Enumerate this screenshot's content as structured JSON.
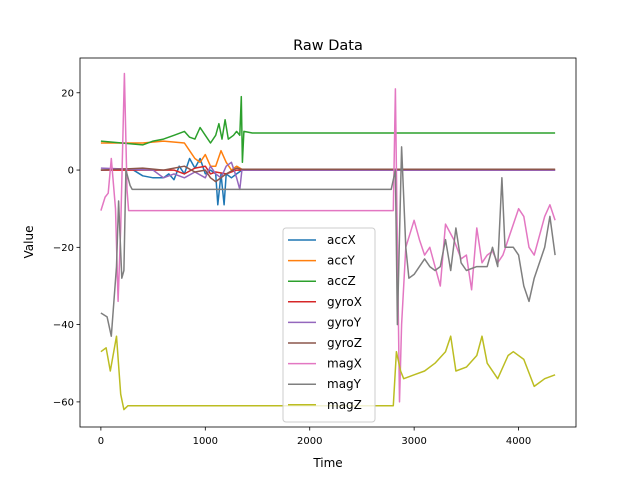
{
  "chart_data": {
    "type": "line",
    "title": "Raw Data",
    "xlabel": "Time",
    "ylabel": "Value",
    "xlim": [
      -200,
      4550
    ],
    "ylim": [
      -66.5,
      29
    ],
    "xticks": [
      0,
      1000,
      2000,
      3000,
      4000
    ],
    "yticks": [
      20,
      0,
      -20,
      -40,
      -60
    ],
    "grid": false,
    "legend_placement": "lower-center",
    "series": [
      {
        "name": "accX",
        "color": "#1f77b4",
        "points": [
          [
            0,
            0
          ],
          [
            300,
            0.2
          ],
          [
            400,
            -1.5
          ],
          [
            500,
            -2
          ],
          [
            600,
            -2
          ],
          [
            650,
            -1
          ],
          [
            700,
            -2.5
          ],
          [
            750,
            1
          ],
          [
            800,
            -1
          ],
          [
            850,
            3
          ],
          [
            900,
            0.5
          ],
          [
            950,
            3
          ],
          [
            1000,
            -1
          ],
          [
            1050,
            0
          ],
          [
            1100,
            -1
          ],
          [
            1120,
            -9
          ],
          [
            1150,
            -1
          ],
          [
            1180,
            -9
          ],
          [
            1200,
            -1
          ],
          [
            1250,
            -2
          ],
          [
            1300,
            -1
          ],
          [
            1350,
            0
          ],
          [
            4350,
            0
          ]
        ]
      },
      {
        "name": "accY",
        "color": "#ff7f0e",
        "points": [
          [
            0,
            7
          ],
          [
            400,
            7
          ],
          [
            600,
            7.5
          ],
          [
            800,
            7
          ],
          [
            850,
            5
          ],
          [
            900,
            3
          ],
          [
            950,
            2
          ],
          [
            1000,
            4
          ],
          [
            1050,
            1
          ],
          [
            1100,
            1
          ],
          [
            1150,
            5
          ],
          [
            1200,
            2
          ],
          [
            1250,
            0
          ],
          [
            1300,
            1
          ],
          [
            1350,
            0.2
          ],
          [
            4350,
            0.2
          ]
        ]
      },
      {
        "name": "accZ",
        "color": "#2ca02c",
        "points": [
          [
            0,
            7.5
          ],
          [
            200,
            7
          ],
          [
            400,
            6.5
          ],
          [
            500,
            7.5
          ],
          [
            600,
            8
          ],
          [
            700,
            9
          ],
          [
            800,
            10
          ],
          [
            850,
            8.5
          ],
          [
            900,
            8
          ],
          [
            950,
            11
          ],
          [
            1000,
            9
          ],
          [
            1050,
            7
          ],
          [
            1100,
            9
          ],
          [
            1130,
            12
          ],
          [
            1160,
            8
          ],
          [
            1190,
            13
          ],
          [
            1220,
            8
          ],
          [
            1270,
            9
          ],
          [
            1300,
            10
          ],
          [
            1330,
            9
          ],
          [
            1345,
            19
          ],
          [
            1355,
            2
          ],
          [
            1370,
            10
          ],
          [
            1450,
            9.6
          ],
          [
            4350,
            9.6
          ]
        ]
      },
      {
        "name": "gyroX",
        "color": "#d62728",
        "points": [
          [
            0,
            0
          ],
          [
            700,
            0
          ],
          [
            800,
            -1
          ],
          [
            900,
            0.5
          ],
          [
            1000,
            1
          ],
          [
            1050,
            -1
          ],
          [
            1100,
            -0.5
          ],
          [
            1200,
            -1
          ],
          [
            1300,
            0
          ],
          [
            4350,
            0
          ]
        ]
      },
      {
        "name": "gyroY",
        "color": "#9467bd",
        "points": [
          [
            0,
            0.5
          ],
          [
            500,
            0
          ],
          [
            600,
            -2
          ],
          [
            700,
            -1
          ],
          [
            800,
            -2
          ],
          [
            900,
            -0.5
          ],
          [
            1000,
            -2
          ],
          [
            1050,
            1
          ],
          [
            1100,
            -1
          ],
          [
            1150,
            -2
          ],
          [
            1200,
            1
          ],
          [
            1250,
            2
          ],
          [
            1300,
            -2
          ],
          [
            1330,
            -5
          ],
          [
            1350,
            0
          ],
          [
            4350,
            0
          ]
        ]
      },
      {
        "name": "gyroZ",
        "color": "#8c564b",
        "points": [
          [
            0,
            0
          ],
          [
            400,
            0.5
          ],
          [
            600,
            0
          ],
          [
            800,
            1
          ],
          [
            900,
            -0.5
          ],
          [
            1000,
            0
          ],
          [
            1050,
            -2
          ],
          [
            1100,
            -3
          ],
          [
            1200,
            -1
          ],
          [
            1300,
            0.5
          ],
          [
            1350,
            0.2
          ],
          [
            4350,
            0.2
          ]
        ]
      },
      {
        "name": "magX",
        "color": "#e377c2",
        "points": [
          [
            0,
            -10.5
          ],
          [
            40,
            -7
          ],
          [
            70,
            -6
          ],
          [
            100,
            3
          ],
          [
            140,
            -10
          ],
          [
            165,
            -34
          ],
          [
            190,
            -15
          ],
          [
            225,
            25
          ],
          [
            250,
            -5
          ],
          [
            265,
            -10.5
          ],
          [
            2800,
            -10.5
          ],
          [
            2820,
            21
          ],
          [
            2835,
            -10
          ],
          [
            2860,
            -60
          ],
          [
            2880,
            -40
          ],
          [
            2920,
            -20
          ],
          [
            3000,
            -13
          ],
          [
            3050,
            -18
          ],
          [
            3100,
            -22
          ],
          [
            3150,
            -20
          ],
          [
            3250,
            -30
          ],
          [
            3300,
            -14
          ],
          [
            3380,
            -18
          ],
          [
            3450,
            -23
          ],
          [
            3500,
            -22
          ],
          [
            3550,
            -31
          ],
          [
            3600,
            -15
          ],
          [
            3650,
            -24
          ],
          [
            3700,
            -22
          ],
          [
            3750,
            -21
          ],
          [
            3800,
            -24
          ],
          [
            3850,
            -22
          ],
          [
            4000,
            -10
          ],
          [
            4050,
            -12
          ],
          [
            4100,
            -20
          ],
          [
            4150,
            -22
          ],
          [
            4250,
            -12
          ],
          [
            4300,
            -9
          ],
          [
            4350,
            -13
          ]
        ]
      },
      {
        "name": "magY",
        "color": "#7f7f7f",
        "points": [
          [
            0,
            -37
          ],
          [
            60,
            -38
          ],
          [
            100,
            -43
          ],
          [
            150,
            -25
          ],
          [
            170,
            -8
          ],
          [
            200,
            -28
          ],
          [
            220,
            -26
          ],
          [
            240,
            0
          ],
          [
            280,
            -4
          ],
          [
            300,
            -5
          ],
          [
            2780,
            -5
          ],
          [
            2820,
            0
          ],
          [
            2840,
            -40
          ],
          [
            2880,
            6
          ],
          [
            2920,
            -20
          ],
          [
            2950,
            -28
          ],
          [
            3000,
            -27
          ],
          [
            3100,
            -23
          ],
          [
            3150,
            -25
          ],
          [
            3200,
            -26
          ],
          [
            3250,
            -25
          ],
          [
            3300,
            -18
          ],
          [
            3350,
            -26
          ],
          [
            3400,
            -15
          ],
          [
            3450,
            -24
          ],
          [
            3500,
            -26
          ],
          [
            3600,
            -25
          ],
          [
            3700,
            -25
          ],
          [
            3750,
            -20
          ],
          [
            3800,
            -25
          ],
          [
            3840,
            -2
          ],
          [
            3870,
            -20
          ],
          [
            3950,
            -20
          ],
          [
            4000,
            -22
          ],
          [
            4050,
            -30
          ],
          [
            4100,
            -34
          ],
          [
            4150,
            -28
          ],
          [
            4250,
            -20
          ],
          [
            4300,
            -12
          ],
          [
            4350,
            -22
          ]
        ]
      },
      {
        "name": "magZ",
        "color": "#bcbd22",
        "points": [
          [
            0,
            -47
          ],
          [
            50,
            -46
          ],
          [
            90,
            -52
          ],
          [
            150,
            -43
          ],
          [
            190,
            -58
          ],
          [
            220,
            -62
          ],
          [
            260,
            -61
          ],
          [
            2800,
            -61
          ],
          [
            2830,
            -47
          ],
          [
            2870,
            -52
          ],
          [
            2900,
            -54
          ],
          [
            3000,
            -53
          ],
          [
            3100,
            -52
          ],
          [
            3200,
            -50
          ],
          [
            3300,
            -47
          ],
          [
            3350,
            -43
          ],
          [
            3400,
            -52
          ],
          [
            3500,
            -51
          ],
          [
            3600,
            -48
          ],
          [
            3650,
            -43
          ],
          [
            3700,
            -50
          ],
          [
            3800,
            -54
          ],
          [
            3900,
            -48
          ],
          [
            3950,
            -47
          ],
          [
            4050,
            -49
          ],
          [
            4150,
            -56
          ],
          [
            4250,
            -54
          ],
          [
            4350,
            -53
          ]
        ]
      }
    ]
  }
}
